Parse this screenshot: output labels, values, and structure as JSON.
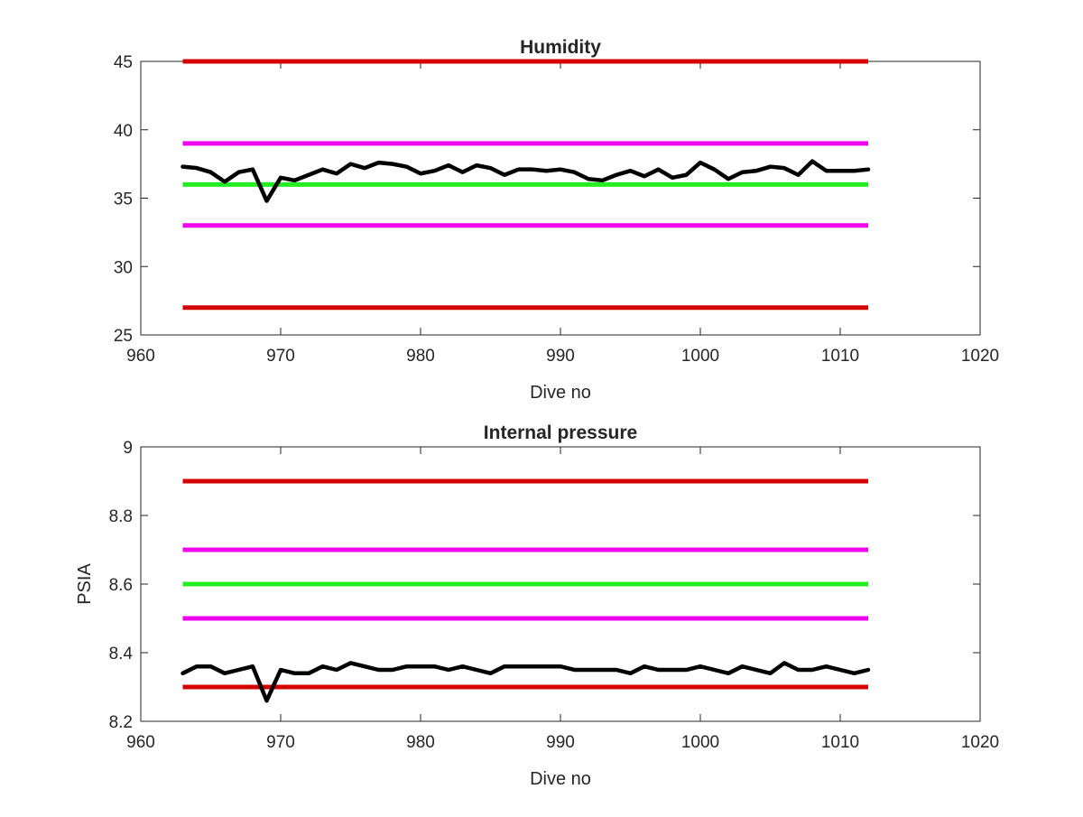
{
  "chart_data": [
    {
      "type": "line",
      "title": "Humidity",
      "xlabel": "Dive no",
      "ylabel": "",
      "xlim": [
        960,
        1020
      ],
      "ylim": [
        25,
        45
      ],
      "xticks": [
        960,
        970,
        980,
        990,
        1000,
        1010,
        1020
      ],
      "xtick_labels": [
        "960",
        "970",
        "980",
        "990",
        "1000",
        "1010",
        "1020"
      ],
      "yticks": [
        25,
        30,
        35,
        40,
        45
      ],
      "ytick_labels": [
        "25",
        "30",
        "35",
        "40",
        "45"
      ],
      "grid": false,
      "reference_lines": [
        {
          "y": 45,
          "x": [
            963,
            1012
          ],
          "color": "#d40000"
        },
        {
          "y": 39,
          "x": [
            963,
            1012
          ],
          "color": "#ee00ee"
        },
        {
          "y": 36,
          "x": [
            963,
            1012
          ],
          "color": "#22ee22"
        },
        {
          "y": 33,
          "x": [
            963,
            1012
          ],
          "color": "#ee00ee"
        },
        {
          "y": 27,
          "x": [
            963,
            1012
          ],
          "color": "#d40000"
        }
      ],
      "series": [
        {
          "color": "#000000",
          "x": [
            963,
            964,
            965,
            966,
            967,
            968,
            969,
            970,
            971,
            972,
            973,
            974,
            975,
            976,
            977,
            978,
            979,
            980,
            981,
            982,
            983,
            984,
            985,
            986,
            987,
            988,
            989,
            990,
            991,
            992,
            993,
            994,
            995,
            996,
            997,
            998,
            999,
            1000,
            1001,
            1002,
            1003,
            1004,
            1005,
            1006,
            1007,
            1008,
            1009,
            1010,
            1011,
            1012
          ],
          "values": [
            37.3,
            37.2,
            36.9,
            36.2,
            36.9,
            37.1,
            34.8,
            36.5,
            36.3,
            36.7,
            37.1,
            36.8,
            37.5,
            37.2,
            37.6,
            37.5,
            37.3,
            36.8,
            37.0,
            37.4,
            36.9,
            37.4,
            37.2,
            36.7,
            37.1,
            37.1,
            37.0,
            37.1,
            36.9,
            36.4,
            36.3,
            36.7,
            37.0,
            36.6,
            37.1,
            36.5,
            36.7,
            37.6,
            37.1,
            36.4,
            36.9,
            37.0,
            37.3,
            37.2,
            36.7,
            37.7,
            37.0,
            37.0,
            37.0,
            37.1
          ]
        }
      ]
    },
    {
      "type": "line",
      "title": "Internal pressure",
      "xlabel": "Dive no",
      "ylabel": "PSIA",
      "xlim": [
        960,
        1020
      ],
      "ylim": [
        8.2,
        9
      ],
      "xticks": [
        960,
        970,
        980,
        990,
        1000,
        1010,
        1020
      ],
      "xtick_labels": [
        "960",
        "970",
        "980",
        "990",
        "1000",
        "1010",
        "1020"
      ],
      "yticks": [
        8.2,
        8.4,
        8.6,
        8.8,
        9
      ],
      "ytick_labels": [
        "8.2",
        "8.4",
        "8.6",
        "8.8",
        "9"
      ],
      "grid": false,
      "reference_lines": [
        {
          "y": 8.9,
          "x": [
            963,
            1012
          ],
          "color": "#d40000"
        },
        {
          "y": 8.7,
          "x": [
            963,
            1012
          ],
          "color": "#ee00ee"
        },
        {
          "y": 8.6,
          "x": [
            963,
            1012
          ],
          "color": "#22ee22"
        },
        {
          "y": 8.5,
          "x": [
            963,
            1012
          ],
          "color": "#ee00ee"
        },
        {
          "y": 8.3,
          "x": [
            963,
            1012
          ],
          "color": "#d40000"
        }
      ],
      "series": [
        {
          "color": "#000000",
          "x": [
            963,
            964,
            965,
            966,
            967,
            968,
            969,
            970,
            971,
            972,
            973,
            974,
            975,
            976,
            977,
            978,
            979,
            980,
            981,
            982,
            983,
            984,
            985,
            986,
            987,
            988,
            989,
            990,
            991,
            992,
            993,
            994,
            995,
            996,
            997,
            998,
            999,
            1000,
            1001,
            1002,
            1003,
            1004,
            1005,
            1006,
            1007,
            1008,
            1009,
            1010,
            1011,
            1012
          ],
          "values": [
            8.34,
            8.36,
            8.36,
            8.34,
            8.35,
            8.36,
            8.26,
            8.35,
            8.34,
            8.34,
            8.36,
            8.35,
            8.37,
            8.36,
            8.35,
            8.35,
            8.36,
            8.36,
            8.36,
            8.35,
            8.36,
            8.35,
            8.34,
            8.36,
            8.36,
            8.36,
            8.36,
            8.36,
            8.35,
            8.35,
            8.35,
            8.35,
            8.34,
            8.36,
            8.35,
            8.35,
            8.35,
            8.36,
            8.35,
            8.34,
            8.36,
            8.35,
            8.34,
            8.37,
            8.35,
            8.35,
            8.36,
            8.35,
            8.34,
            8.35
          ]
        }
      ]
    }
  ]
}
